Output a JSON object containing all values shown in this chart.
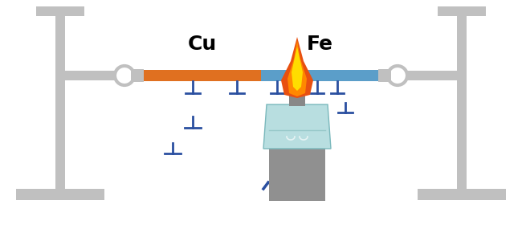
{
  "bg_color": "#ffffff",
  "stand_color": "#c0c0c0",
  "rod_color": "#c0c0c0",
  "cu_color": "#e07020",
  "fe_color": "#5b9ec9",
  "temp_marker_color": "#2a4fa0",
  "label_cu": "Cu",
  "label_fe": "Fe",
  "label_fontsize": 18,
  "flame_color_outer": "#e85010",
  "flame_color_inner": "#ffaa00",
  "flame_color_tip": "#ffdd00",
  "burner_bottle_color": "#b8dee0",
  "burner_body_color": "#a0a8a8",
  "burner_stand_color": "#909090"
}
